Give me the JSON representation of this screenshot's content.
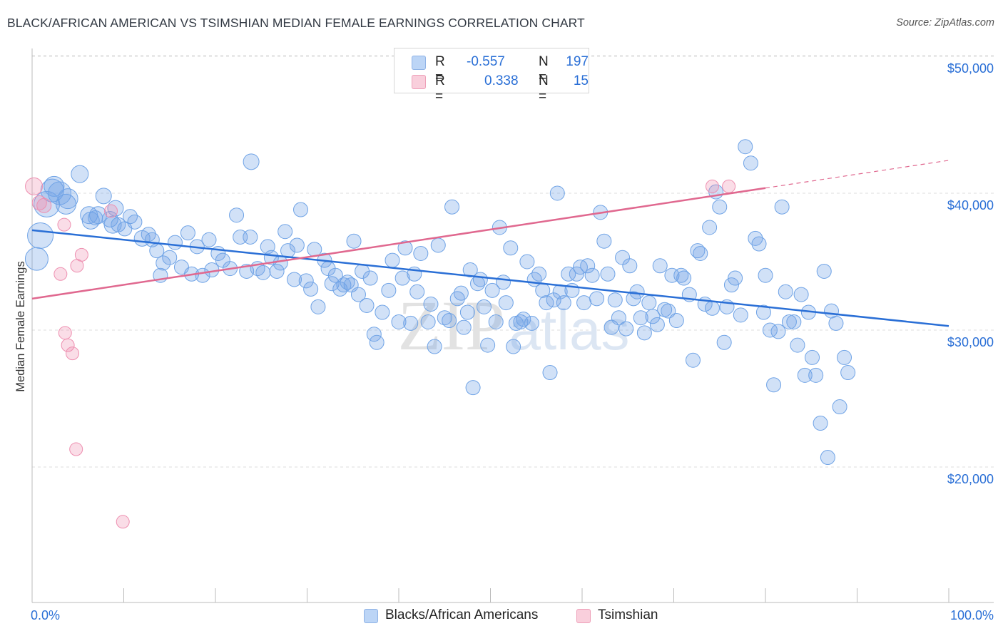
{
  "title": "BLACK/AFRICAN AMERICAN VS TSIMSHIAN MEDIAN FEMALE EARNINGS CORRELATION CHART",
  "source": "Source: ZipAtlas.com",
  "watermark": "ZIPatlas",
  "legend": {
    "rows": [
      {
        "r_label": "R =",
        "r_value": "-0.557",
        "n_label": "N =",
        "n_value": "197",
        "color": "#a9c9f2"
      },
      {
        "r_label": "R =",
        "r_value": "0.338",
        "n_label": "N =",
        "n_value": "15",
        "color": "#f6b9cc"
      }
    ]
  },
  "bottom_legend": [
    {
      "label": "Blacks/African Americans",
      "color": "#a9c9f2"
    },
    {
      "label": "Tsimshian",
      "color": "#f6b9cc"
    }
  ],
  "chart_data": {
    "type": "scatter",
    "title": "BLACK/AFRICAN AMERICAN VS TSIMSHIAN MEDIAN FEMALE EARNINGS CORRELATION CHART",
    "xlabel": "",
    "ylabel": "Median Female Earnings",
    "x_tick_labels": [
      "0.0%",
      "100.0%"
    ],
    "y_tick_labels": [
      "$20,000",
      "$30,000",
      "$40,000",
      "$50,000"
    ],
    "y_ticks": [
      20000,
      30000,
      40000,
      50000
    ],
    "xlim": [
      0,
      100
    ],
    "ylim": [
      10000,
      51000
    ],
    "grid": true,
    "legend_position": "top-center",
    "colors": {
      "blue": "#6fa3e6",
      "pink": "#ee8fb0",
      "blue_line": "#2a6fd6",
      "pink_line": "#e0688f"
    },
    "series": [
      {
        "name": "Blacks/African Americans",
        "color": "#6fa3e6",
        "trend": {
          "x": [
            0,
            100
          ],
          "y": [
            37300,
            30300
          ]
        },
        "points": [
          [
            0.5,
            35200,
            16
          ],
          [
            0.9,
            36900,
            18
          ],
          [
            1.6,
            39200,
            18
          ],
          [
            2.2,
            40200,
            16
          ],
          [
            2.4,
            40500,
            14
          ],
          [
            3.0,
            40000,
            16
          ],
          [
            3.7,
            39200,
            14
          ],
          [
            3.9,
            39600,
            14
          ],
          [
            5.2,
            41400,
            12
          ],
          [
            6.2,
            38400,
            12
          ],
          [
            6.4,
            38000,
            12
          ],
          [
            6.9,
            38200,
            10
          ],
          [
            7.2,
            38400,
            12
          ],
          [
            7.8,
            39800,
            11
          ],
          [
            8.5,
            38100,
            11
          ],
          [
            8.8,
            37700,
            12
          ],
          [
            9.1,
            38900,
            11
          ],
          [
            9.4,
            37700,
            10
          ],
          [
            10.1,
            37400,
            10
          ],
          [
            10.7,
            38300,
            10
          ],
          [
            11.2,
            37900,
            10
          ],
          [
            12.0,
            36700,
            11
          ],
          [
            12.7,
            37000,
            10
          ],
          [
            13.1,
            36600,
            10
          ],
          [
            13.6,
            35800,
            10
          ],
          [
            14.0,
            34000,
            10
          ],
          [
            14.3,
            34900,
            10
          ],
          [
            15.0,
            35300,
            10
          ],
          [
            15.6,
            36400,
            10
          ],
          [
            16.3,
            34600,
            10
          ],
          [
            17.0,
            37100,
            10
          ],
          [
            17.4,
            34100,
            10
          ],
          [
            18.0,
            36100,
            10
          ],
          [
            18.6,
            34000,
            10
          ],
          [
            19.3,
            36600,
            10
          ],
          [
            19.6,
            34400,
            10
          ],
          [
            20.3,
            35600,
            10
          ],
          [
            20.8,
            35100,
            10
          ],
          [
            21.6,
            34500,
            10
          ],
          [
            22.3,
            38400,
            10
          ],
          [
            22.7,
            36800,
            10
          ],
          [
            23.4,
            34300,
            10
          ],
          [
            23.8,
            36800,
            10
          ],
          [
            23.9,
            42300,
            11
          ],
          [
            24.6,
            34500,
            10
          ],
          [
            25.2,
            34200,
            10
          ],
          [
            25.7,
            36100,
            10
          ],
          [
            26.1,
            35300,
            10
          ],
          [
            26.7,
            34300,
            10
          ],
          [
            27.1,
            34900,
            10
          ],
          [
            27.6,
            37200,
            10
          ],
          [
            27.9,
            35800,
            10
          ],
          [
            28.6,
            33700,
            10
          ],
          [
            28.9,
            36200,
            10
          ],
          [
            29.3,
            38800,
            10
          ],
          [
            29.9,
            33600,
            10
          ],
          [
            30.4,
            33000,
            10
          ],
          [
            30.8,
            35900,
            10
          ],
          [
            31.2,
            31700,
            10
          ],
          [
            31.9,
            35100,
            10
          ],
          [
            32.3,
            34500,
            10
          ],
          [
            32.7,
            33400,
            10
          ],
          [
            33.1,
            34000,
            10
          ],
          [
            33.6,
            33000,
            10
          ],
          [
            34.0,
            33300,
            10
          ],
          [
            34.4,
            33500,
            10
          ],
          [
            34.8,
            33300,
            10
          ],
          [
            35.1,
            36500,
            10
          ],
          [
            35.6,
            32600,
            10
          ],
          [
            36.0,
            34300,
            10
          ],
          [
            36.5,
            31800,
            10
          ],
          [
            36.9,
            33800,
            10
          ],
          [
            37.3,
            29700,
            10
          ],
          [
            37.6,
            29100,
            10
          ],
          [
            38.2,
            31300,
            10
          ],
          [
            38.9,
            32900,
            10
          ],
          [
            39.3,
            35100,
            10
          ],
          [
            40.0,
            30600,
            10
          ],
          [
            40.4,
            33800,
            10
          ],
          [
            40.7,
            36000,
            10
          ],
          [
            41.3,
            30500,
            10
          ],
          [
            41.7,
            34100,
            10
          ],
          [
            42.0,
            32800,
            10
          ],
          [
            42.4,
            35600,
            10
          ],
          [
            43.2,
            30600,
            10
          ],
          [
            43.5,
            31900,
            10
          ],
          [
            43.9,
            28800,
            10
          ],
          [
            44.3,
            36200,
            10
          ],
          [
            45.0,
            30900,
            10
          ],
          [
            45.5,
            30700,
            10
          ],
          [
            45.8,
            39000,
            10
          ],
          [
            46.4,
            32300,
            10
          ],
          [
            46.8,
            32700,
            10
          ],
          [
            47.1,
            30200,
            10
          ],
          [
            47.5,
            31300,
            10
          ],
          [
            47.8,
            34400,
            10
          ],
          [
            48.1,
            25800,
            10
          ],
          [
            48.6,
            33400,
            10
          ],
          [
            48.9,
            33700,
            10
          ],
          [
            49.3,
            31700,
            10
          ],
          [
            49.7,
            28900,
            10
          ],
          [
            50.2,
            32900,
            10
          ],
          [
            50.6,
            30600,
            10
          ],
          [
            51.0,
            37500,
            10
          ],
          [
            51.4,
            33500,
            10
          ],
          [
            51.7,
            32000,
            10
          ],
          [
            52.2,
            36000,
            10
          ],
          [
            52.5,
            28800,
            10
          ],
          [
            52.8,
            30500,
            10
          ],
          [
            53.3,
            30600,
            10
          ],
          [
            53.6,
            30800,
            10
          ],
          [
            54.0,
            35000,
            10
          ],
          [
            54.5,
            30500,
            10
          ],
          [
            54.8,
            33700,
            10
          ],
          [
            55.3,
            34100,
            10
          ],
          [
            55.7,
            32900,
            10
          ],
          [
            56.1,
            32000,
            10
          ],
          [
            56.5,
            26900,
            10
          ],
          [
            56.9,
            32200,
            10
          ],
          [
            57.3,
            40000,
            10
          ],
          [
            57.6,
            32800,
            10
          ],
          [
            58.0,
            32000,
            10
          ],
          [
            58.5,
            34100,
            10
          ],
          [
            58.9,
            32900,
            10
          ],
          [
            59.4,
            34100,
            10
          ],
          [
            59.8,
            34600,
            10
          ],
          [
            60.2,
            32000,
            10
          ],
          [
            60.6,
            34700,
            10
          ],
          [
            61.1,
            34000,
            10
          ],
          [
            61.6,
            32300,
            10
          ],
          [
            62.0,
            38600,
            10
          ],
          [
            62.4,
            36500,
            10
          ],
          [
            62.8,
            34100,
            10
          ],
          [
            63.2,
            30200,
            10
          ],
          [
            63.6,
            32200,
            10
          ],
          [
            64.0,
            30900,
            10
          ],
          [
            64.4,
            35300,
            10
          ],
          [
            64.8,
            30100,
            10
          ],
          [
            65.2,
            34700,
            10
          ],
          [
            65.6,
            32300,
            10
          ],
          [
            66.0,
            32800,
            10
          ],
          [
            66.4,
            30900,
            10
          ],
          [
            66.8,
            29800,
            10
          ],
          [
            67.3,
            32000,
            10
          ],
          [
            67.7,
            31000,
            10
          ],
          [
            68.2,
            30400,
            10
          ],
          [
            68.5,
            34700,
            10
          ],
          [
            69.0,
            31500,
            10
          ],
          [
            69.4,
            31400,
            10
          ],
          [
            69.8,
            34000,
            10
          ],
          [
            70.3,
            30700,
            10
          ],
          [
            70.8,
            34000,
            10
          ],
          [
            71.1,
            33800,
            10
          ],
          [
            71.7,
            32600,
            10
          ],
          [
            72.1,
            27800,
            10
          ],
          [
            72.6,
            35800,
            10
          ],
          [
            72.9,
            35600,
            10
          ],
          [
            73.4,
            31900,
            10
          ],
          [
            73.9,
            37500,
            10
          ],
          [
            74.2,
            31600,
            10
          ],
          [
            74.6,
            40100,
            10
          ],
          [
            75.0,
            39000,
            10
          ],
          [
            75.5,
            29100,
            10
          ],
          [
            75.8,
            31700,
            10
          ],
          [
            76.3,
            33300,
            10
          ],
          [
            76.7,
            33800,
            10
          ],
          [
            77.3,
            31100,
            10
          ],
          [
            77.8,
            43400,
            10
          ],
          [
            78.4,
            42200,
            10
          ],
          [
            78.9,
            36700,
            10
          ],
          [
            79.3,
            36300,
            10
          ],
          [
            79.8,
            31300,
            10
          ],
          [
            80.0,
            34000,
            10
          ],
          [
            80.5,
            30000,
            10
          ],
          [
            80.9,
            26000,
            10
          ],
          [
            81.4,
            29900,
            10
          ],
          [
            81.8,
            39000,
            10
          ],
          [
            82.2,
            32800,
            10
          ],
          [
            82.6,
            30600,
            10
          ],
          [
            83.1,
            30600,
            10
          ],
          [
            83.5,
            28900,
            10
          ],
          [
            83.9,
            32600,
            10
          ],
          [
            84.3,
            26700,
            10
          ],
          [
            84.7,
            31300,
            10
          ],
          [
            85.1,
            28000,
            10
          ],
          [
            85.5,
            26700,
            10
          ],
          [
            86.0,
            23200,
            10
          ],
          [
            86.4,
            34300,
            10
          ],
          [
            86.8,
            20700,
            10
          ],
          [
            87.2,
            31400,
            10
          ],
          [
            87.7,
            30500,
            10
          ],
          [
            88.1,
            24400,
            10
          ],
          [
            88.6,
            28000,
            10
          ],
          [
            89.0,
            26900,
            10
          ]
        ]
      },
      {
        "name": "Tsimshian",
        "color": "#ee8fb0",
        "trend": {
          "x": [
            0,
            100
          ],
          "y": [
            32300,
            42400
          ]
        },
        "trend_solid_to_x": 80,
        "points": [
          [
            0.2,
            40500,
            12
          ],
          [
            0.8,
            39300,
            10
          ],
          [
            1.3,
            39100,
            10
          ],
          [
            3.1,
            34100,
            9
          ],
          [
            3.5,
            37700,
            9
          ],
          [
            3.6,
            29800,
            9
          ],
          [
            3.9,
            28900,
            9
          ],
          [
            4.4,
            28300,
            9
          ],
          [
            4.8,
            21300,
            9
          ],
          [
            4.9,
            34700,
            9
          ],
          [
            5.4,
            35500,
            9
          ],
          [
            8.6,
            38700,
            9
          ],
          [
            9.9,
            16000,
            9
          ],
          [
            74.2,
            40500,
            9
          ],
          [
            76.0,
            40500,
            9
          ]
        ]
      }
    ]
  }
}
